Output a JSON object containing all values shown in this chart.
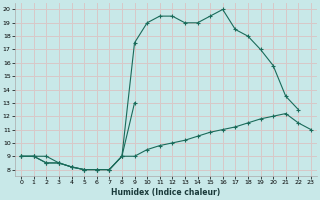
{
  "title": "",
  "xlabel": "Humidex (Indice chaleur)",
  "bg_color": "#c8e8e8",
  "grid_color": "#d8c8c8",
  "line_color": "#1a6b5a",
  "xlim": [
    -0.5,
    23.5
  ],
  "ylim": [
    7.5,
    20.5
  ],
  "xticks": [
    0,
    1,
    2,
    3,
    4,
    5,
    6,
    7,
    8,
    9,
    10,
    11,
    12,
    13,
    14,
    15,
    16,
    17,
    18,
    19,
    20,
    21,
    22,
    23
  ],
  "yticks": [
    8,
    9,
    10,
    11,
    12,
    13,
    14,
    15,
    16,
    17,
    18,
    19,
    20
  ],
  "upper_x": [
    0,
    1,
    2,
    3,
    4,
    5,
    6,
    7,
    8,
    9,
    10,
    11,
    12,
    13,
    14,
    15,
    16,
    17,
    18,
    19,
    20,
    21,
    22,
    23
  ],
  "upper_y": [
    9,
    9,
    9,
    8.5,
    8.2,
    8.0,
    8.0,
    8.0,
    9.0,
    17.5,
    19.0,
    19.5,
    19.5,
    19.0,
    19.0,
    19.5,
    20.0,
    18.5,
    18.0,
    17.0,
    15.8,
    13.5,
    12.5,
    null
  ],
  "mid_x": [
    0,
    1,
    2,
    3,
    4,
    5,
    6,
    7,
    8,
    9,
    10,
    11,
    12,
    13,
    14,
    15,
    16,
    17,
    18,
    19,
    20,
    21,
    22,
    23
  ],
  "mid_y": [
    9,
    9,
    8.5,
    8.5,
    8.2,
    8.0,
    8.0,
    8.0,
    9.0,
    13.0,
    null,
    null,
    null,
    null,
    null,
    null,
    null,
    null,
    null,
    null,
    null,
    null,
    null,
    null
  ],
  "bot_x": [
    0,
    1,
    2,
    3,
    4,
    5,
    6,
    7,
    8,
    9,
    10,
    11,
    12,
    13,
    14,
    15,
    16,
    17,
    18,
    19,
    20,
    21,
    22,
    23
  ],
  "bot_y": [
    9,
    9,
    8.5,
    8.5,
    8.2,
    8.0,
    8.0,
    8.0,
    9.0,
    9.0,
    9.5,
    9.8,
    10.0,
    10.2,
    10.5,
    10.8,
    11.0,
    11.2,
    11.5,
    11.8,
    12.0,
    12.2,
    11.5,
    11.0
  ]
}
